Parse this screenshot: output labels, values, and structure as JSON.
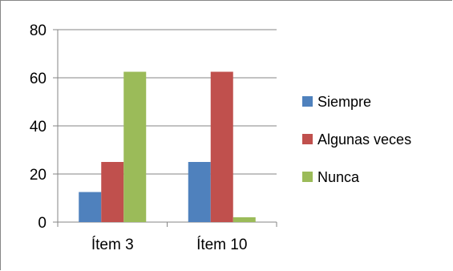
{
  "chart_data": {
    "type": "bar",
    "categories": [
      "Ítem 3",
      "Ítem 10"
    ],
    "series": [
      {
        "name": "Siempre",
        "values": [
          12.5,
          25
        ],
        "color": "#4f81bd"
      },
      {
        "name": "Algunas veces",
        "values": [
          25,
          62.5
        ],
        "color": "#c0504d"
      },
      {
        "name": "Nunca",
        "values": [
          62.5,
          2
        ],
        "color": "#9bbb59"
      }
    ],
    "ylim": [
      0,
      80
    ],
    "yticks": [
      "0",
      "20",
      "40",
      "60",
      "80"
    ],
    "grid": true,
    "legend_position": "right"
  }
}
